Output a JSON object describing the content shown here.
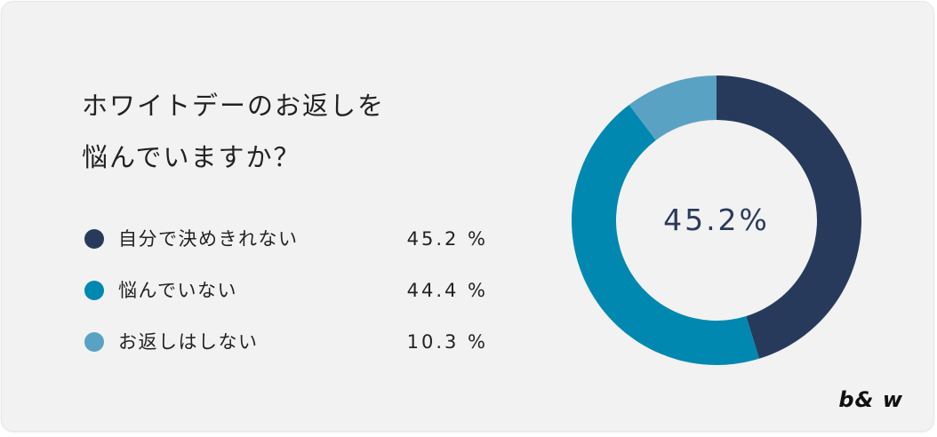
{
  "title": {
    "line1": "ホワイトデーのお返しを",
    "line2": "悩んでいますか？"
  },
  "legend": [
    {
      "label": "自分で決めきれない",
      "value": "45.2 %",
      "color": "#283a5c"
    },
    {
      "label": "悩んでいない",
      "value": "44.4 %",
      "color": "#0088b0"
    },
    {
      "label": "お返しはしない",
      "value": "10.3 %",
      "color": "#5aa2c4"
    }
  ],
  "donut": {
    "center_label": "45.2%"
  },
  "brand": "b& w",
  "chart_data": {
    "type": "pie",
    "variant": "donut",
    "title": "ホワイトデーのお返しを悩んでいますか？",
    "categories": [
      "自分で決めきれない",
      "悩んでいない",
      "お返しはしない"
    ],
    "values": [
      45.2,
      44.4,
      10.3
    ],
    "unit": "%",
    "colors": [
      "#283a5c",
      "#0088b0",
      "#5aa2c4"
    ],
    "center_text": "45.2%",
    "legend_position": "left",
    "start_angle_deg": 0,
    "direction": "clockwise"
  }
}
